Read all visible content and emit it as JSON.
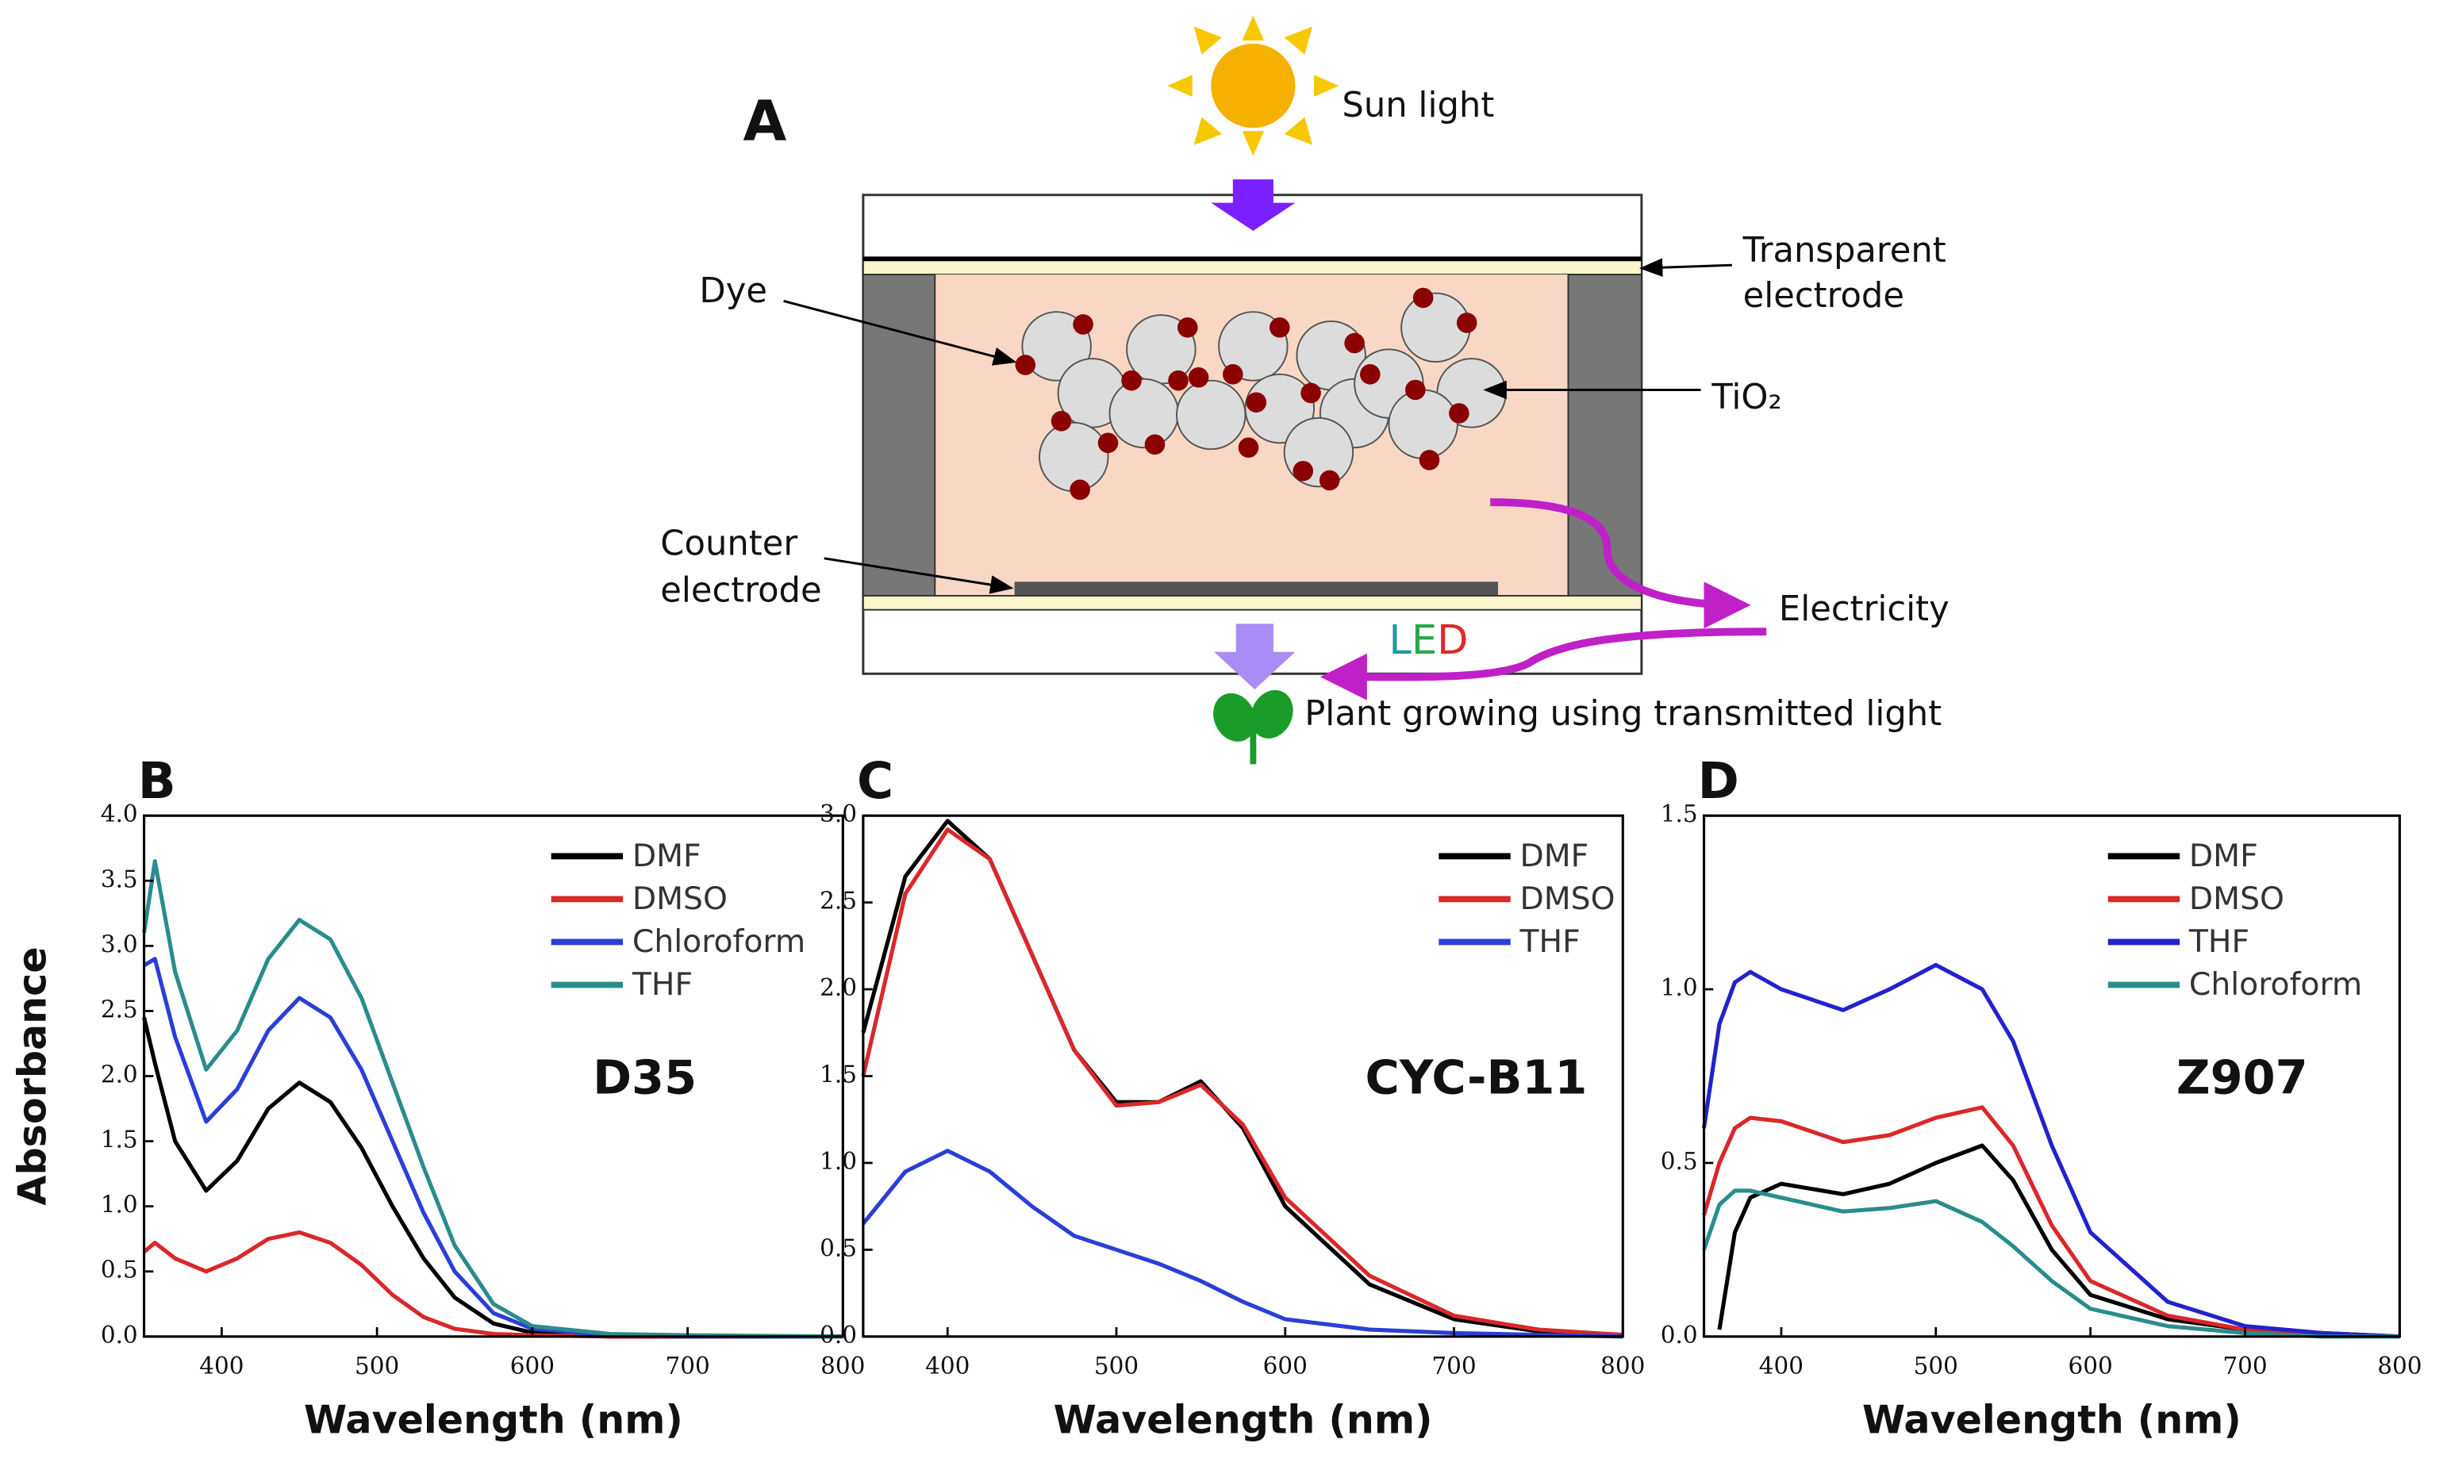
{
  "diagram": {
    "panel": "A",
    "sun": "Sun light",
    "transparent_electrode": [
      "Transparent",
      "electrode"
    ],
    "dye": "Dye",
    "tio2": "TiO₂",
    "counter_electrode": [
      "Counter",
      "electrode"
    ],
    "electricity": "Electricity",
    "led": "LED",
    "plant": "Plant growing using transmitted light"
  },
  "chart_data": [
    {
      "type": "line",
      "panel": "B",
      "annotation": "D35",
      "y_label": "Absorbance",
      "x_label": "Wavelength (nm)",
      "legend": "upper right",
      "x": [
        350,
        357,
        370,
        390,
        410,
        430,
        450,
        470,
        490,
        510,
        530,
        550,
        575,
        600,
        650,
        700,
        800
      ],
      "series": [
        {
          "name": "DMF",
          "color": "#000000",
          "values": [
            2.45,
            2.1,
            1.5,
            1.12,
            1.35,
            1.75,
            1.95,
            1.8,
            1.45,
            1.0,
            0.6,
            0.3,
            0.1,
            0.03,
            0,
            0,
            0
          ]
        },
        {
          "name": "DMSO",
          "color": "#d9282a",
          "values": [
            0.65,
            0.72,
            0.6,
            0.5,
            0.6,
            0.75,
            0.8,
            0.72,
            0.55,
            0.32,
            0.15,
            0.06,
            0.02,
            0.01,
            0,
            0,
            0
          ]
        },
        {
          "name": "Chloroform",
          "color": "#2a3fd6",
          "values": [
            2.85,
            2.9,
            2.3,
            1.65,
            1.9,
            2.35,
            2.6,
            2.45,
            2.05,
            1.5,
            0.95,
            0.5,
            0.18,
            0.06,
            0.01,
            0,
            0
          ]
        },
        {
          "name": "THF",
          "color": "#2a8c8c",
          "values": [
            3.1,
            3.65,
            2.8,
            2.05,
            2.35,
            2.9,
            3.2,
            3.05,
            2.6,
            1.95,
            1.3,
            0.7,
            0.25,
            0.08,
            0.02,
            0.01,
            0
          ]
        }
      ],
      "xlim": [
        350,
        800
      ],
      "xticks": [
        400,
        500,
        600,
        700,
        800
      ],
      "ylim": [
        0,
        4
      ],
      "yticks": [
        {
          "value": 0,
          "label": "0.0"
        },
        0.5,
        {
          "value": 1,
          "label": "1.0"
        },
        1.5,
        {
          "value": 2,
          "label": "2.0"
        },
        2.5,
        {
          "value": 3,
          "label": "3.0"
        },
        3.5,
        {
          "value": 4,
          "label": "4.0"
        }
      ]
    },
    {
      "type": "line",
      "panel": "C",
      "annotation": "CYC-B11",
      "x_label": "Wavelength (nm)",
      "legend": "upper right",
      "x": [
        350,
        375,
        400,
        425,
        450,
        475,
        500,
        525,
        550,
        575,
        600,
        650,
        700,
        750,
        800
      ],
      "series": [
        {
          "name": "DMF",
          "color": "#000000",
          "values": [
            1.75,
            2.65,
            2.97,
            2.75,
            2.2,
            1.65,
            1.35,
            1.35,
            1.47,
            1.2,
            0.75,
            0.3,
            0.1,
            0.03,
            0.01
          ]
        },
        {
          "name": "DMSO",
          "color": "#d9282a",
          "values": [
            1.5,
            2.55,
            2.92,
            2.75,
            2.2,
            1.65,
            1.33,
            1.35,
            1.45,
            1.22,
            0.8,
            0.35,
            0.12,
            0.04,
            0.01
          ]
        },
        {
          "name": "THF",
          "color": "#2a3fd6",
          "values": [
            0.65,
            0.95,
            1.07,
            0.95,
            0.75,
            0.58,
            0.5,
            0.42,
            0.32,
            0.2,
            0.1,
            0.04,
            0.02,
            0.01,
            0
          ]
        }
      ],
      "xlim": [
        350,
        800
      ],
      "xticks": [
        400,
        500,
        600,
        700,
        800
      ],
      "ylim": [
        0,
        3
      ],
      "yticks": [
        {
          "value": 0,
          "label": "0.0"
        },
        0.5,
        {
          "value": 1,
          "label": "1.0"
        },
        1.5,
        {
          "value": 2,
          "label": "2.0"
        },
        2.5,
        {
          "value": 3,
          "label": "3.0"
        }
      ]
    },
    {
      "type": "line",
      "panel": "D",
      "annotation": "Z907",
      "x_label": "Wavelength (nm)",
      "legend": "upper right",
      "x": [
        350,
        360,
        370,
        380,
        400,
        440,
        470,
        500,
        530,
        550,
        575,
        600,
        650,
        700,
        750,
        800
      ],
      "series": [
        {
          "name": "DMF",
          "color": "#000000",
          "values": [
            null,
            0.02,
            0.3,
            0.4,
            0.44,
            0.41,
            0.44,
            0.5,
            0.55,
            0.45,
            0.25,
            0.12,
            0.05,
            0.02,
            0.01,
            0
          ]
        },
        {
          "name": "DMSO",
          "color": "#d9282a",
          "values": [
            0.35,
            0.5,
            0.6,
            0.63,
            0.62,
            0.56,
            0.58,
            0.63,
            0.66,
            0.55,
            0.32,
            0.16,
            0.06,
            0.02,
            0.01,
            0
          ]
        },
        {
          "name": "THF",
          "color": "#2222cc",
          "values": [
            0.6,
            0.9,
            1.02,
            1.05,
            1.0,
            0.94,
            1.0,
            1.07,
            1.0,
            0.85,
            0.55,
            0.3,
            0.1,
            0.03,
            0.01,
            0
          ]
        },
        {
          "name": "Chloroform",
          "color": "#2a8c8c",
          "values": [
            0.25,
            0.38,
            0.42,
            0.42,
            0.4,
            0.36,
            0.37,
            0.39,
            0.33,
            0.26,
            0.16,
            0.08,
            0.03,
            0.01,
            0,
            0
          ]
        }
      ],
      "xlim": [
        350,
        800
      ],
      "xticks": [
        400,
        500,
        600,
        700,
        800
      ],
      "ylim": [
        0,
        1.5
      ],
      "yticks": [
        {
          "value": 0,
          "label": "0.0"
        },
        0.5,
        {
          "value": 1,
          "label": "1.0"
        },
        1.5
      ]
    }
  ]
}
